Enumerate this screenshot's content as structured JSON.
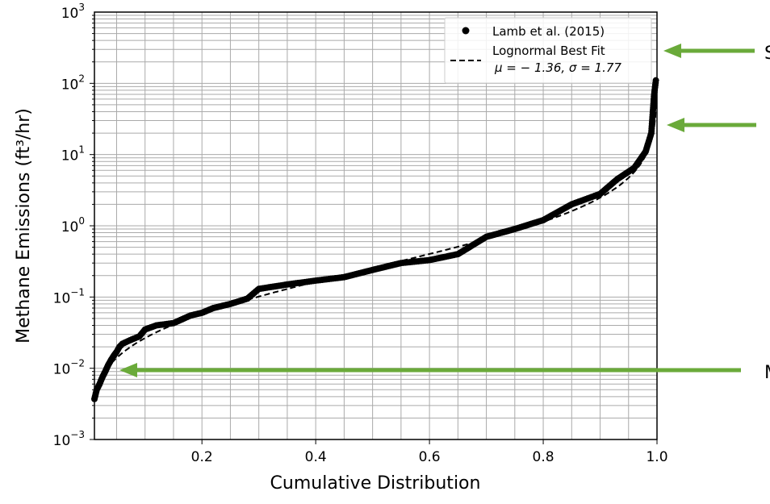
{
  "chart_data": {
    "type": "scatter",
    "title": "",
    "xlabel": "Cumulative Distribution",
    "ylabel": "Methane Emissions (ft³/hr)",
    "xlim": [
      0.011,
      1.0
    ],
    "ylim": [
      0.001,
      1000
    ],
    "yscale": "log",
    "grid": true,
    "legend_position": "top-right",
    "x_ticks": [
      "0.2",
      "0.4",
      "0.6",
      "0.8",
      "1.0"
    ],
    "x_tick_values": [
      0.2,
      0.4,
      0.6,
      0.8,
      1.0
    ],
    "y_ticks": [
      {
        "base": "10",
        "exp": "−3"
      },
      {
        "base": "10",
        "exp": "−2"
      },
      {
        "base": "10",
        "exp": "−1"
      },
      {
        "base": "10",
        "exp": "0"
      },
      {
        "base": "10",
        "exp": "1"
      },
      {
        "base": "10",
        "exp": "2"
      },
      {
        "base": "10",
        "exp": "3"
      }
    ],
    "series": [
      {
        "name": "Lamb et al. (2015)",
        "kind": "points",
        "color": "#000000",
        "points": [
          [
            0.011,
            0.0037
          ],
          [
            0.015,
            0.005
          ],
          [
            0.02,
            0.006
          ],
          [
            0.025,
            0.0075
          ],
          [
            0.03,
            0.009
          ],
          [
            0.035,
            0.011
          ],
          [
            0.04,
            0.013
          ],
          [
            0.045,
            0.015
          ],
          [
            0.05,
            0.017
          ],
          [
            0.055,
            0.02
          ],
          [
            0.06,
            0.022
          ],
          [
            0.07,
            0.024
          ],
          [
            0.08,
            0.026
          ],
          [
            0.09,
            0.028
          ],
          [
            0.1,
            0.035
          ],
          [
            0.12,
            0.04
          ],
          [
            0.15,
            0.043
          ],
          [
            0.18,
            0.055
          ],
          [
            0.2,
            0.06
          ],
          [
            0.22,
            0.07
          ],
          [
            0.25,
            0.08
          ],
          [
            0.28,
            0.095
          ],
          [
            0.3,
            0.13
          ],
          [
            0.35,
            0.15
          ],
          [
            0.4,
            0.17
          ],
          [
            0.45,
            0.19
          ],
          [
            0.5,
            0.24
          ],
          [
            0.55,
            0.3
          ],
          [
            0.6,
            0.33
          ],
          [
            0.65,
            0.4
          ],
          [
            0.7,
            0.7
          ],
          [
            0.75,
            0.9
          ],
          [
            0.8,
            1.2
          ],
          [
            0.85,
            2.0
          ],
          [
            0.9,
            2.8
          ],
          [
            0.93,
            4.5
          ],
          [
            0.96,
            6.5
          ],
          [
            0.98,
            11
          ],
          [
            0.99,
            20
          ],
          [
            0.995,
            70
          ],
          [
            0.998,
            110
          ]
        ]
      },
      {
        "name": "Lognormal Best Fit",
        "name_line2": "μ = − 1.36, σ = 1.77",
        "kind": "lognormal-quantile-line",
        "mu": -1.36,
        "sigma": 1.77,
        "color": "#000000",
        "style": "dashed"
      }
    ],
    "annotations": [
      {
        "type": "arrow",
        "color": "#6aaa3a",
        "label": "S",
        "points_to_value": 300
      },
      {
        "type": "arrow",
        "color": "#6aaa3a",
        "label": "",
        "points_to_value": 25
      },
      {
        "type": "arrow",
        "color": "#6aaa3a",
        "label": "M",
        "points_to_value": 0.0095
      }
    ]
  }
}
